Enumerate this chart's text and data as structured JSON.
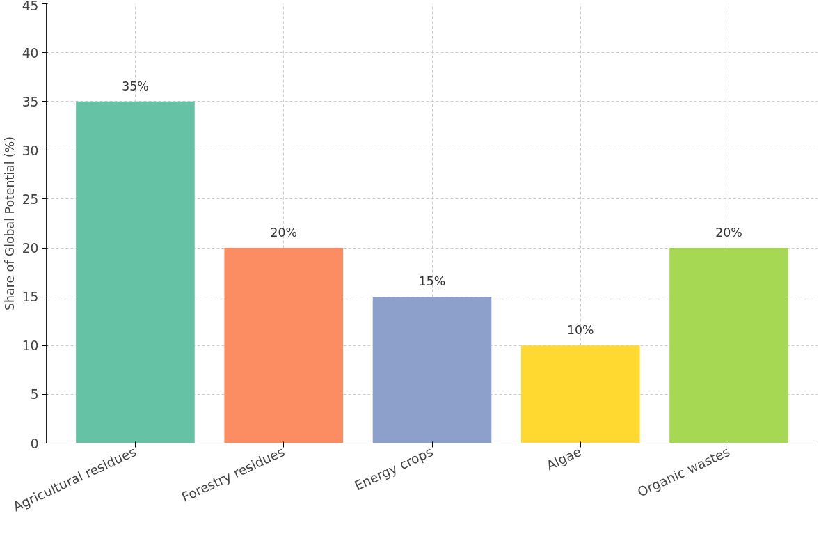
{
  "chart_data": {
    "type": "bar",
    "ylabel": "Share of Global Potential (%)",
    "categories": [
      "Agricultural residues",
      "Forestry residues",
      "Energy crops",
      "Algae",
      "Organic wastes"
    ],
    "values": [
      35,
      20,
      15,
      10,
      20
    ],
    "colors": [
      "#66c2a5",
      "#fc8d62",
      "#8da0cb",
      "#ffd92f",
      "#a6d854"
    ],
    "value_labels": [
      "35%",
      "20%",
      "15%",
      "10%",
      "20%"
    ],
    "ylim": [
      0,
      45
    ],
    "yticks": [
      0,
      5,
      10,
      15,
      20,
      25,
      30,
      35,
      40,
      45
    ],
    "grid": true
  }
}
